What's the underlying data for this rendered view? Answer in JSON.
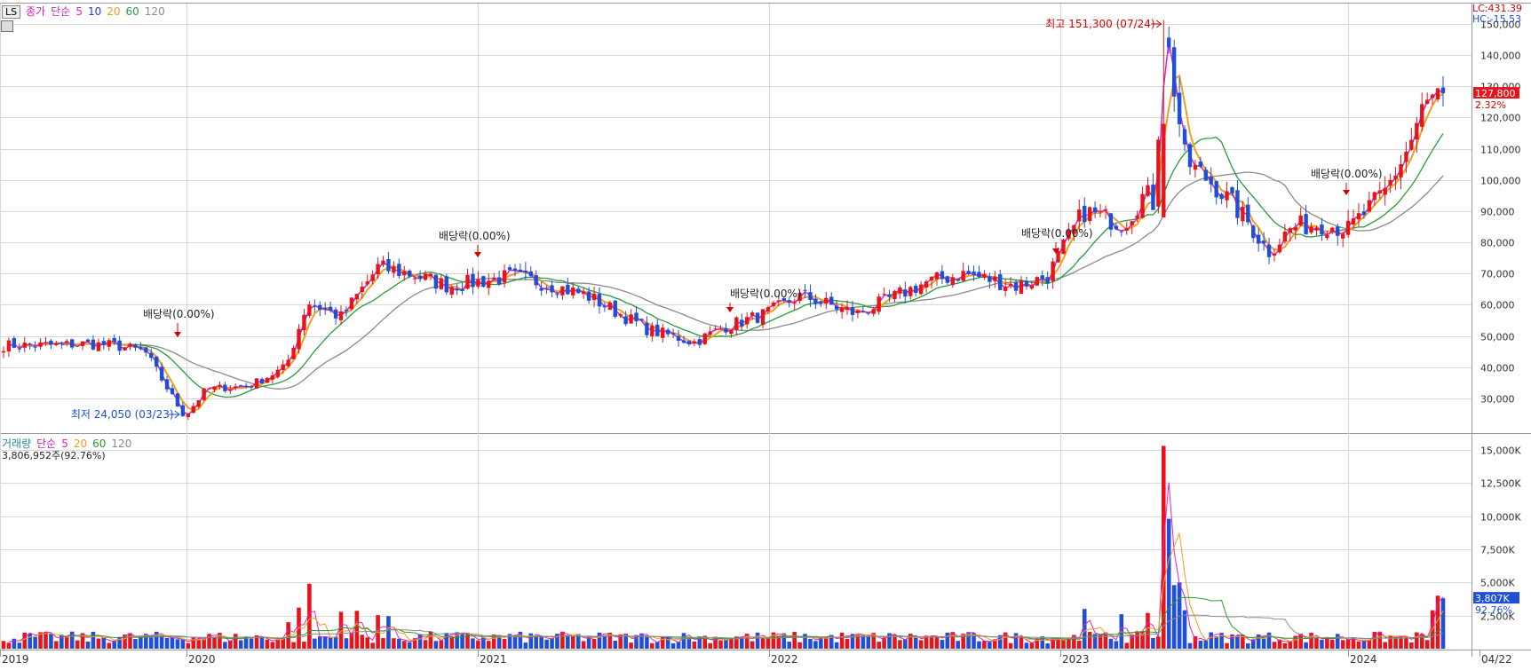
{
  "price_legend": {
    "code": "LS",
    "close": "종가",
    "method": "단순",
    "ma5": "5",
    "ma10": "10",
    "ma20": "20",
    "ma60": "60",
    "ma120": "120"
  },
  "volume_legend": {
    "title": "거래량",
    "method": "단순",
    "ma5": "5",
    "ma20": "20",
    "ma60": "60",
    "ma120": "120",
    "info": "3,806,952주(92.76%)"
  },
  "side": {
    "lc": "LC:431.39",
    "hc": "HC:-15.53"
  },
  "colors": {
    "up": "#e8141c",
    "down": "#1f4fd6",
    "ma5": "#e020c8",
    "ma10": "#1f3ad8",
    "ma20": "#f0a020",
    "ma60": "#2a9a3a",
    "ma120": "#8a8a8a",
    "grid": "#d8d8d8"
  },
  "chart_data": [
    {
      "type": "candlestick",
      "yaxis_ticks": [
        30000,
        40000,
        50000,
        60000,
        70000,
        80000,
        90000,
        100000,
        110000,
        120000,
        130000,
        140000,
        150000
      ],
      "ytick_labels": [
        "30,000",
        "40,000",
        "50,000",
        "60,000",
        "70,000",
        "80,000",
        "90,000",
        "100,000",
        "110,000",
        "120,000",
        "130,000",
        "140,000",
        "150,000"
      ],
      "ylim": [
        20000,
        152000
      ],
      "x_labels": [
        "2019",
        "2020",
        "2021",
        "2022",
        "2023",
        "2024",
        "04/22"
      ],
      "current": {
        "price": "127,800",
        "change": "2.32%"
      },
      "annotations": [
        {
          "text": "최고 151,300 (07/24)",
          "value": 151300,
          "kind": "high"
        },
        {
          "text": "최저 24,050 (03/23)",
          "value": 24050,
          "kind": "low"
        },
        {
          "text": "배당락(0.00%)",
          "kind": "div"
        },
        {
          "text": "배당락(0.00%)",
          "kind": "div"
        },
        {
          "text": "배당락(0.00%)",
          "kind": "div"
        },
        {
          "text": "배당락(0.00%)",
          "kind": "div"
        },
        {
          "text": "배당락(0.00%)",
          "kind": "div"
        }
      ]
    },
    {
      "type": "bar",
      "title": "거래량",
      "yaxis_ticks": [
        2500,
        5000,
        7500,
        10000,
        12500,
        15000
      ],
      "ytick_labels": [
        "2,500K",
        "5,000K",
        "7,500K",
        "10,000K",
        "12,500K",
        "15,000K"
      ],
      "ylim": [
        0,
        16000
      ],
      "current": {
        "value": "3,807K",
        "ratio": "92.76%"
      }
    }
  ]
}
